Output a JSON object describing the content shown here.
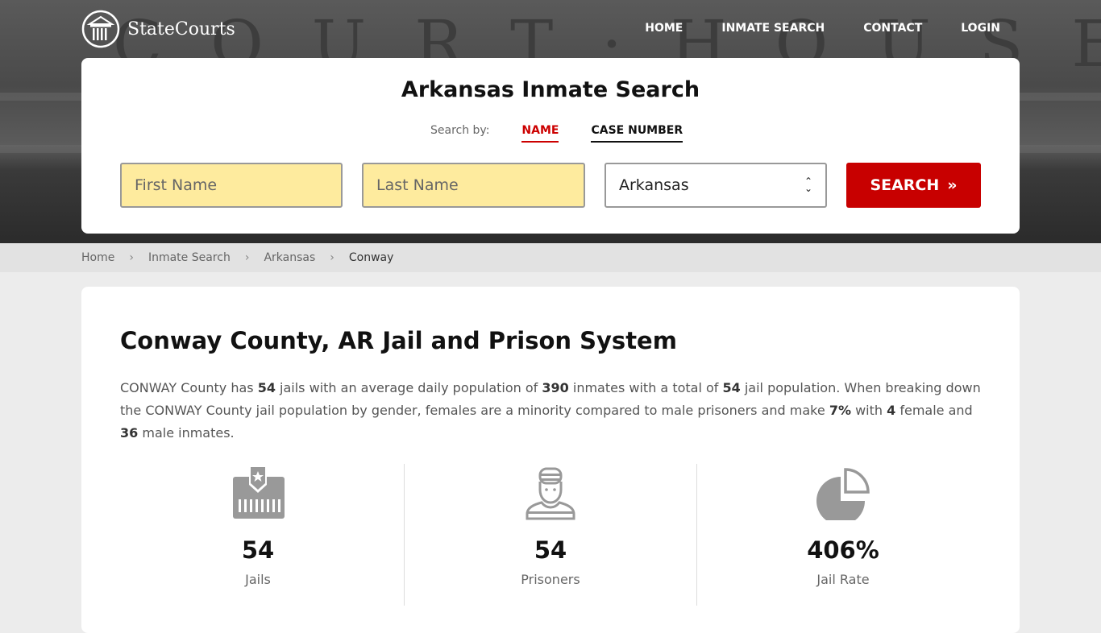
{
  "brand": "StateCourts",
  "hero_bg_text": "COURT·HOUSE",
  "nav": [
    "HOME",
    "INMATE SEARCH",
    "CONTACT",
    "LOGIN"
  ],
  "search": {
    "title": "Arkansas Inmate Search",
    "search_by_label": "Search by:",
    "tabs": [
      {
        "label": "NAME",
        "active": true
      },
      {
        "label": "CASE NUMBER",
        "active": false
      }
    ],
    "first_name_placeholder": "First Name",
    "last_name_placeholder": "Last Name",
    "state_value": "Arkansas",
    "button_label": "SEARCH"
  },
  "breadcrumb": [
    "Home",
    "Inmate Search",
    "Arkansas",
    "Conway"
  ],
  "main": {
    "title": "Conway County, AR Jail and Prison System",
    "para": [
      "CONWAY County has ",
      "54",
      " jails with an average daily population of ",
      "390",
      " inmates with a total of ",
      "54",
      " jail population. When breaking down the CONWAY County jail population by gender, females are a minority compared to male prisoners and make ",
      "7%",
      " with ",
      "4",
      " female and ",
      "36",
      " male inmates."
    ],
    "stats": [
      {
        "icon": "jail-icon",
        "value": "54",
        "label": "Jails"
      },
      {
        "icon": "prisoner-icon",
        "value": "54",
        "label": "Prisoners"
      },
      {
        "icon": "pie-chart-icon",
        "value": "406%",
        "label": "Jail Rate"
      }
    ]
  },
  "colors": {
    "accent": "#c80000",
    "input_bg": "#feeb9e",
    "icon_gray": "#999999"
  }
}
